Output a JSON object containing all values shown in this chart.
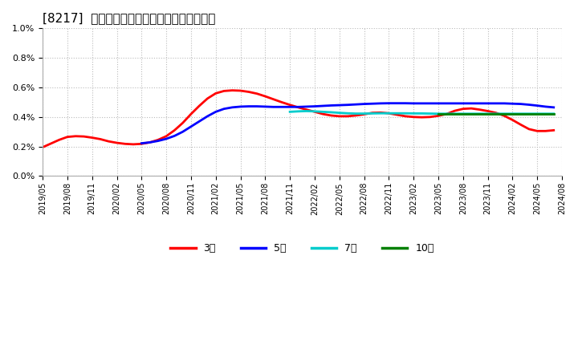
{
  "title": "[8217]  当期純利益マージンの標準偏差の推移",
  "background_color": "#ffffff",
  "grid_color": "#cccccc",
  "series": {
    "3year": {
      "color": "#ff0000",
      "label": "3年",
      "x": [
        0,
        1,
        2,
        3,
        4,
        5,
        6,
        7,
        8,
        9,
        10,
        11,
        12,
        13,
        14,
        15,
        16,
        17,
        18,
        19,
        20,
        21,
        22,
        23,
        24,
        25,
        26,
        27,
        28,
        29,
        30,
        31,
        32,
        33,
        34,
        35,
        36,
        37,
        38,
        39,
        40,
        41,
        42,
        43,
        44,
        45,
        46,
        47,
        48,
        49,
        50,
        51,
        52,
        53,
        54,
        55,
        56,
        57,
        58,
        59,
        60,
        61,
        62
      ],
      "y": [
        0.00195,
        0.0022,
        0.00245,
        0.00265,
        0.0027,
        0.00268,
        0.0026,
        0.0025,
        0.00235,
        0.00225,
        0.00218,
        0.00215,
        0.00218,
        0.00228,
        0.00245,
        0.0027,
        0.0031,
        0.0036,
        0.0042,
        0.00475,
        0.00525,
        0.0056,
        0.00576,
        0.0058,
        0.00578,
        0.0057,
        0.00558,
        0.0054,
        0.0052,
        0.005,
        0.00482,
        0.00465,
        0.0045,
        0.00435,
        0.0042,
        0.0041,
        0.00405,
        0.00405,
        0.0041,
        0.00418,
        0.00428,
        0.0043,
        0.00425,
        0.00415,
        0.00405,
        0.004,
        0.00398,
        0.004,
        0.00408,
        0.0042,
        0.00442,
        0.00455,
        0.00458,
        0.0045,
        0.0044,
        0.00428,
        0.00408,
        0.0038,
        0.00348,
        0.00318,
        0.00305,
        0.00305,
        0.0031
      ]
    },
    "5year": {
      "color": "#0000ff",
      "label": "5年",
      "x": [
        12,
        13,
        14,
        15,
        16,
        17,
        18,
        19,
        20,
        21,
        22,
        23,
        24,
        25,
        26,
        27,
        28,
        29,
        30,
        31,
        32,
        33,
        34,
        35,
        36,
        37,
        38,
        39,
        40,
        41,
        42,
        43,
        44,
        45,
        46,
        47,
        48,
        49,
        50,
        51,
        52,
        53,
        54,
        55,
        56,
        57,
        58,
        59,
        60,
        61,
        62
      ],
      "y": [
        0.00222,
        0.00228,
        0.00238,
        0.00252,
        0.00272,
        0.003,
        0.00335,
        0.0037,
        0.00405,
        0.00435,
        0.00455,
        0.00465,
        0.0047,
        0.00472,
        0.00472,
        0.0047,
        0.00468,
        0.00468,
        0.00468,
        0.00468,
        0.0047,
        0.00472,
        0.00475,
        0.00478,
        0.0048,
        0.00482,
        0.00485,
        0.00488,
        0.0049,
        0.00492,
        0.00493,
        0.00493,
        0.00493,
        0.00492,
        0.00492,
        0.00492,
        0.00492,
        0.00492,
        0.00492,
        0.00492,
        0.00492,
        0.00492,
        0.00492,
        0.00492,
        0.00492,
        0.0049,
        0.00488,
        0.00483,
        0.00477,
        0.0047,
        0.00465
      ]
    },
    "7year": {
      "color": "#00cccc",
      "label": "7年",
      "x": [
        30,
        31,
        32,
        33,
        34,
        35,
        36,
        37,
        38,
        39,
        40,
        41,
        42,
        43,
        44,
        45,
        46,
        47,
        48,
        49,
        50,
        51,
        52,
        53,
        54,
        55,
        56,
        57,
        58,
        59,
        60,
        61,
        62
      ],
      "y": [
        0.00435,
        0.00438,
        0.0044,
        0.00438,
        0.00435,
        0.00432,
        0.00428,
        0.00425,
        0.00423,
        0.00423,
        0.00424,
        0.00425,
        0.00425,
        0.00425,
        0.00425,
        0.00424,
        0.00424,
        0.00423,
        0.00422,
        0.00422,
        0.00422,
        0.00422,
        0.00422,
        0.00422,
        0.00422,
        0.00422,
        0.00422,
        0.00422,
        0.00422,
        0.00422,
        0.00422,
        0.00422,
        0.00422
      ]
    },
    "10year": {
      "color": "#008000",
      "label": "10年",
      "x": [
        48,
        49,
        50,
        51,
        52,
        53,
        54,
        55,
        56,
        57,
        58,
        59,
        60,
        61,
        62
      ],
      "y": [
        0.00422,
        0.00422,
        0.00422,
        0.00422,
        0.00422,
        0.00422,
        0.00422,
        0.00422,
        0.00422,
        0.00422,
        0.00422,
        0.00422,
        0.00422,
        0.00422,
        0.00422
      ]
    }
  },
  "xtick_labels": [
    "2019/05",
    "2019/08",
    "2019/11",
    "2020/02",
    "2020/05",
    "2020/08",
    "2020/11",
    "2021/02",
    "2021/05",
    "2021/08",
    "2021/11",
    "2022/02",
    "2022/05",
    "2022/08",
    "2022/11",
    "2023/02",
    "2023/05",
    "2023/08",
    "2023/11",
    "2024/02",
    "2024/05",
    "2024/08"
  ],
  "legend_labels": [
    "3年",
    "5年",
    "7年",
    "10年"
  ],
  "legend_colors": [
    "#ff0000",
    "#0000ff",
    "#00cccc",
    "#008000"
  ]
}
